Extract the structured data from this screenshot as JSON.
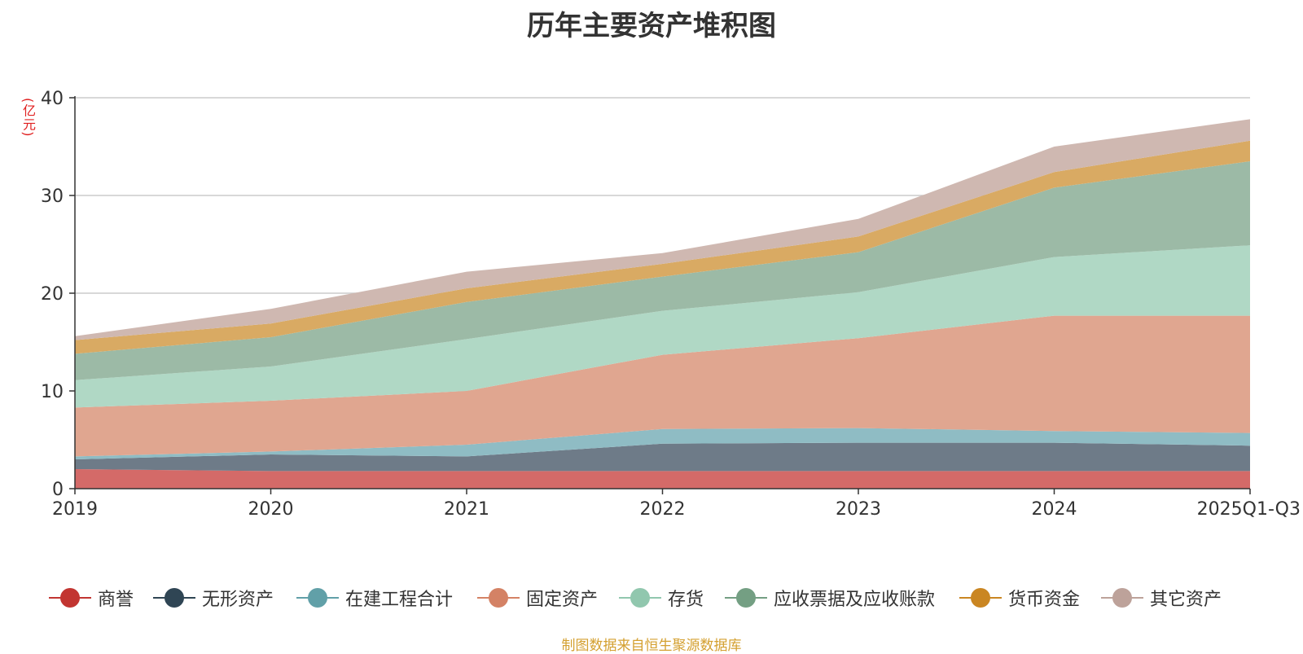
{
  "title": "历年主要资产堆积图",
  "unit_label": "(亿元)",
  "source_note": "制图数据来自恒生聚源数据库",
  "chart_data": {
    "type": "area",
    "stacked": true,
    "title": "历年主要资产堆积图",
    "ylabel": "(亿元)",
    "ylim": [
      0,
      40
    ],
    "yticks": [
      0,
      10,
      20,
      30,
      40
    ],
    "grid": true,
    "legend_position": "bottom",
    "categories": [
      "2019",
      "2020",
      "2021",
      "2022",
      "2023",
      "2024",
      "2025Q1-Q3"
    ],
    "series": [
      {
        "name": "商誉",
        "color": "#c23531",
        "fill": "#d46a68",
        "values": [
          2.0,
          1.8,
          1.8,
          1.8,
          1.8,
          1.8,
          1.8
        ]
      },
      {
        "name": "无形资产",
        "color": "#2f4554",
        "fill": "#6e7b88",
        "values": [
          1.0,
          1.7,
          1.5,
          2.8,
          2.9,
          2.9,
          2.6
        ]
      },
      {
        "name": "在建工程合计",
        "color": "#61a0a8",
        "fill": "#8fbcc4",
        "values": [
          0.3,
          0.3,
          1.2,
          1.5,
          1.5,
          1.2,
          1.3
        ]
      },
      {
        "name": "固定资产",
        "color": "#d48265",
        "fill": "#e0a690",
        "values": [
          5.0,
          5.2,
          5.5,
          7.6,
          9.2,
          11.8,
          12.0
        ]
      },
      {
        "name": "存货",
        "color": "#91c7ae",
        "fill": "#b0d8c5",
        "values": [
          2.8,
          3.5,
          5.3,
          4.5,
          4.7,
          6.0,
          7.2
        ]
      },
      {
        "name": "应收票据及应收账款",
        "color": "#749f83",
        "fill": "#9cbaa6",
        "values": [
          2.7,
          3.0,
          3.8,
          3.5,
          4.1,
          7.1,
          8.6
        ]
      },
      {
        "name": "货币资金",
        "color": "#ca8622",
        "fill": "#d9aa63",
        "values": [
          1.4,
          1.4,
          1.4,
          1.3,
          1.6,
          1.6,
          2.1
        ]
      },
      {
        "name": "其它资产",
        "color": "#bda29a",
        "fill": "#cfb8b1",
        "values": [
          0.4,
          1.5,
          1.7,
          1.1,
          1.8,
          2.6,
          2.2
        ]
      }
    ]
  }
}
